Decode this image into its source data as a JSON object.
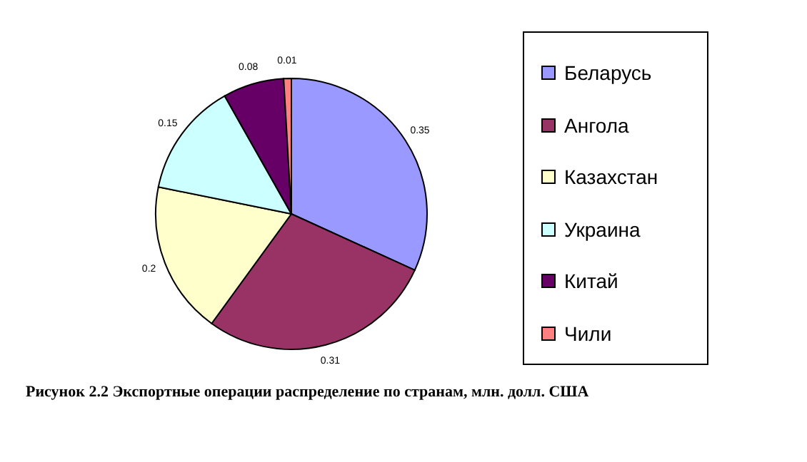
{
  "chart_data": {
    "type": "pie",
    "categories": [
      "Беларусь",
      "Ангола",
      "Казахстан",
      "Украина",
      "Китай",
      "Чили"
    ],
    "values": [
      0.35,
      0.31,
      0.2,
      0.15,
      0.08,
      0.01
    ],
    "colors": [
      "#9999ff",
      "#993366",
      "#ffffcc",
      "#ccffff",
      "#660066",
      "#ff8080"
    ],
    "data_labels": true,
    "legend": "right",
    "annotations": [
      "Рисунок 2.2 Экспортные операции распределение по странам, млн. долл. США"
    ]
  }
}
